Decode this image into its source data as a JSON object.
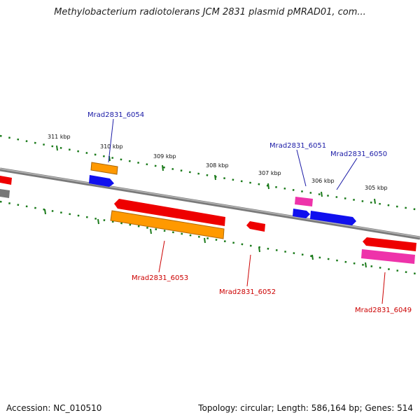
{
  "title": "Methylobacterium radiotolerans JCM 2831 plasmid pMRAD01, com...",
  "footer": {
    "accession": "Accession: NC_010510",
    "topology": "Topology: circular; Length: 586,164 bp; Genes: 514"
  },
  "colors": {
    "backbone": "#808080",
    "ticks": "#1a7a1a",
    "label_top": "#1a1aa6",
    "label_bottom": "#cc0000",
    "red": "#ee0000",
    "orange": "#ff9900",
    "blue": "#1010ee",
    "pink": "#ee33aa",
    "gray": "#777777"
  },
  "ticks": [
    {
      "label": "311 kbp"
    },
    {
      "label": "310 kbp"
    },
    {
      "label": "309 kbp"
    },
    {
      "label": "308 kbp"
    },
    {
      "label": "307 kbp"
    },
    {
      "label": "306 kbp"
    },
    {
      "label": "305 kbp"
    }
  ],
  "gene_labels": [
    {
      "name": "Mrad2831_6054",
      "strand": "top"
    },
    {
      "name": "Mrad2831_6051",
      "strand": "top"
    },
    {
      "name": "Mrad2831_6050",
      "strand": "top"
    },
    {
      "name": "Mrad2831_6053",
      "strand": "bottom"
    },
    {
      "name": "Mrad2831_6052",
      "strand": "bottom"
    },
    {
      "name": "Mrad2831_6049",
      "strand": "bottom"
    }
  ]
}
